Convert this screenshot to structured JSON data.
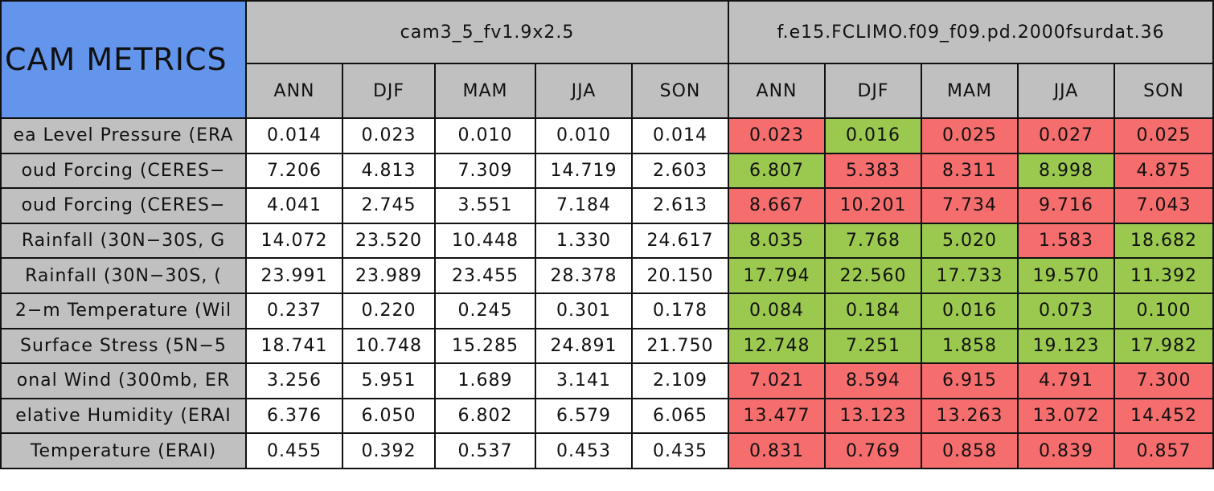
{
  "header": {
    "title": "CAM METRICS",
    "groups": [
      "cam3_5_fv1.9x2.5",
      "f.e15.FCLIMO.f09_f09.pd.2000fsurdat.36"
    ],
    "seasons": [
      "ANN",
      "DJF",
      "MAM",
      "JJA",
      "SON",
      "ANN",
      "DJF",
      "MAM",
      "JJA",
      "SON"
    ]
  },
  "table": {
    "rows": [
      {
        "label": "ea Level Pressure (ERA",
        "cells": [
          "0.014",
          "0.023",
          "0.010",
          "0.010",
          "0.014",
          "0.023",
          "0.016",
          "0.025",
          "0.027",
          "0.025"
        ],
        "colors": [
          "#ffffff",
          "#ffffff",
          "#ffffff",
          "#ffffff",
          "#ffffff",
          "#f66d6d",
          "#9bc94f",
          "#f66d6d",
          "#f66d6d",
          "#f66d6d"
        ]
      },
      {
        "label": "oud Forcing (CERES−",
        "cells": [
          "7.206",
          "4.813",
          "7.309",
          "14.719",
          "2.603",
          "6.807",
          "5.383",
          "8.311",
          "8.998",
          "4.875"
        ],
        "colors": [
          "#ffffff",
          "#ffffff",
          "#ffffff",
          "#ffffff",
          "#ffffff",
          "#9bc94f",
          "#f66d6d",
          "#f66d6d",
          "#9bc94f",
          "#f66d6d"
        ]
      },
      {
        "label": "oud Forcing (CERES−",
        "cells": [
          "4.041",
          "2.745",
          "3.551",
          "7.184",
          "2.613",
          "8.667",
          "10.201",
          "7.734",
          "9.716",
          "7.043"
        ],
        "colors": [
          "#ffffff",
          "#ffffff",
          "#ffffff",
          "#ffffff",
          "#ffffff",
          "#f66d6d",
          "#f66d6d",
          "#f66d6d",
          "#f66d6d",
          "#f66d6d"
        ]
      },
      {
        "label": "Rainfall (30N−30S, G",
        "cells": [
          "14.072",
          "23.520",
          "10.448",
          "1.330",
          "24.617",
          "8.035",
          "7.768",
          "5.020",
          "1.583",
          "18.682"
        ],
        "colors": [
          "#ffffff",
          "#ffffff",
          "#ffffff",
          "#ffffff",
          "#ffffff",
          "#9bc94f",
          "#9bc94f",
          "#9bc94f",
          "#f66d6d",
          "#9bc94f"
        ]
      },
      {
        "label": "Rainfall (30N−30S, (",
        "cells": [
          "23.991",
          "23.989",
          "23.455",
          "28.378",
          "20.150",
          "17.794",
          "22.560",
          "17.733",
          "19.570",
          "11.392"
        ],
        "colors": [
          "#ffffff",
          "#ffffff",
          "#ffffff",
          "#ffffff",
          "#ffffff",
          "#9bc94f",
          "#9bc94f",
          "#9bc94f",
          "#9bc94f",
          "#9bc94f"
        ]
      },
      {
        "label": "2−m Temperature (Wil",
        "cells": [
          "0.237",
          "0.220",
          "0.245",
          "0.301",
          "0.178",
          "0.084",
          "0.184",
          "0.016",
          "0.073",
          "0.100"
        ],
        "colors": [
          "#ffffff",
          "#ffffff",
          "#ffffff",
          "#ffffff",
          "#ffffff",
          "#9bc94f",
          "#9bc94f",
          "#9bc94f",
          "#9bc94f",
          "#9bc94f"
        ]
      },
      {
        "label": "Surface Stress (5N−5",
        "cells": [
          "18.741",
          "10.748",
          "15.285",
          "24.891",
          "21.750",
          "12.748",
          "7.251",
          "1.858",
          "19.123",
          "17.982"
        ],
        "colors": [
          "#ffffff",
          "#ffffff",
          "#ffffff",
          "#ffffff",
          "#ffffff",
          "#9bc94f",
          "#9bc94f",
          "#9bc94f",
          "#9bc94f",
          "#9bc94f"
        ]
      },
      {
        "label": "onal Wind (300mb, ER",
        "cells": [
          "3.256",
          "5.951",
          "1.689",
          "3.141",
          "2.109",
          "7.021",
          "8.594",
          "6.915",
          "4.791",
          "7.300"
        ],
        "colors": [
          "#ffffff",
          "#ffffff",
          "#ffffff",
          "#ffffff",
          "#ffffff",
          "#f66d6d",
          "#f66d6d",
          "#f66d6d",
          "#f66d6d",
          "#f66d6d"
        ]
      },
      {
        "label": "elative Humidity (ERAI",
        "cells": [
          "6.376",
          "6.050",
          "6.802",
          "6.579",
          "6.065",
          "13.477",
          "13.123",
          "13.263",
          "13.072",
          "14.452"
        ],
        "colors": [
          "#ffffff",
          "#ffffff",
          "#ffffff",
          "#ffffff",
          "#ffffff",
          "#f66d6d",
          "#f66d6d",
          "#f66d6d",
          "#f66d6d",
          "#f66d6d"
        ]
      },
      {
        "label": "Temperature (ERAI)",
        "cells": [
          "0.455",
          "0.392",
          "0.537",
          "0.453",
          "0.435",
          "0.831",
          "0.769",
          "0.858",
          "0.839",
          "0.857"
        ],
        "colors": [
          "#ffffff",
          "#ffffff",
          "#ffffff",
          "#ffffff",
          "#ffffff",
          "#f66d6d",
          "#f66d6d",
          "#f66d6d",
          "#f66d6d",
          "#f66d6d"
        ]
      }
    ]
  }
}
